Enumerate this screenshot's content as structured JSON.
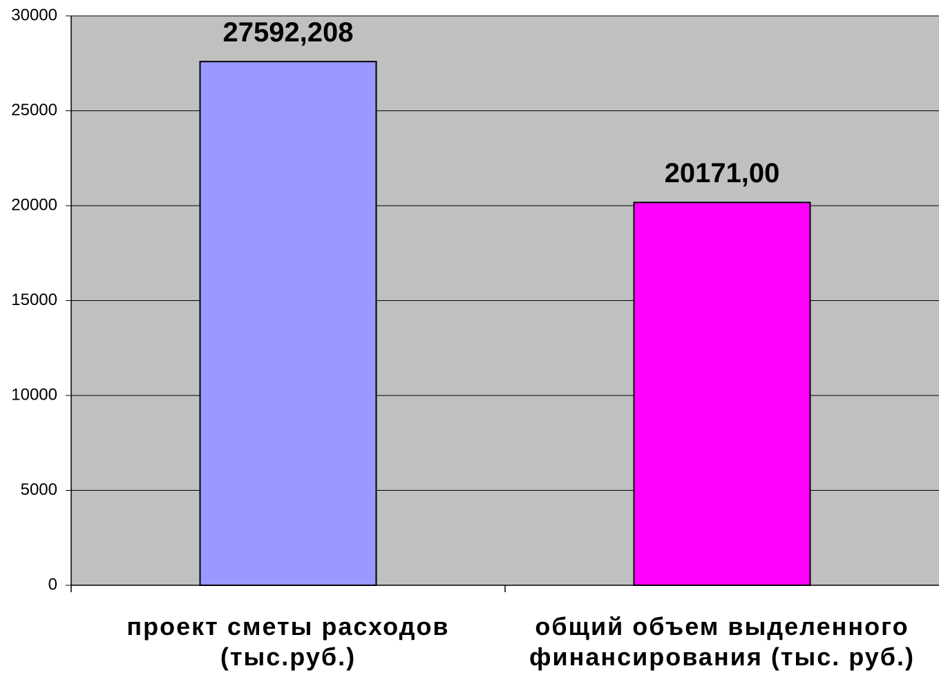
{
  "chart_data": {
    "type": "bar",
    "categories": [
      "проект сметы расходов (тыс.руб.)",
      "общий объем выделенного финансирования (тыс. руб.)"
    ],
    "values": [
      27592.208,
      20171
    ],
    "value_labels": [
      "27592,208",
      "20171,00"
    ],
    "colors": [
      "#9999ff",
      "#ff00ff"
    ],
    "ylim": [
      0,
      30000
    ],
    "yticks": [
      0,
      5000,
      10000,
      15000,
      20000,
      25000,
      30000
    ],
    "grid": true
  }
}
